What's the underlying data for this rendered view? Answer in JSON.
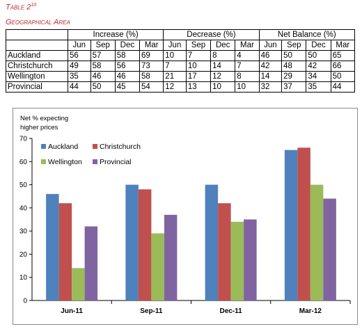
{
  "table": {
    "title_main": "Table 2",
    "title_sup": "10",
    "section": "Geographical Area",
    "groups": [
      "Increase (%)",
      "Decrease (%)",
      "Net Balance (%)"
    ],
    "months": [
      "Jun",
      "Sep",
      "Dec",
      "Mar"
    ],
    "rows": [
      {
        "label": "Auckland",
        "values": [
          "56",
          "57",
          "58",
          "69",
          "10",
          "7",
          "8",
          "4",
          "46",
          "50",
          "50",
          "65"
        ]
      },
      {
        "label": "Christchurch",
        "values": [
          "49",
          "58",
          "56",
          "73",
          "7",
          "10",
          "14",
          "7",
          "42",
          "48",
          "42",
          "66"
        ]
      },
      {
        "label": "Wellington",
        "values": [
          "35",
          "46",
          "46",
          "58",
          "21",
          "17",
          "12",
          "8",
          "14",
          "29",
          "34",
          "50"
        ]
      },
      {
        "label": "Provincial",
        "values": [
          "44",
          "50",
          "45",
          "54",
          "12",
          "13",
          "10",
          "10",
          "32",
          "37",
          "35",
          "44"
        ]
      }
    ]
  },
  "chart_data": {
    "type": "bar",
    "ylabel_lines": [
      "Net % expecting",
      "higher prices"
    ],
    "categories": [
      "Jun-11",
      "Sep-11",
      "Dec-11",
      "Mar-12"
    ],
    "ylim": [
      0,
      70
    ],
    "yticks": [
      0,
      10,
      20,
      30,
      40,
      50,
      60,
      70
    ],
    "grid": false,
    "legend_placement": "top-left",
    "series": [
      {
        "name": "Auckland",
        "color": "#4f81bd",
        "values": [
          46,
          50,
          50,
          65
        ]
      },
      {
        "name": "Christchurch",
        "color": "#c0504d",
        "values": [
          42,
          48,
          42,
          66
        ]
      },
      {
        "name": "Wellington",
        "color": "#9bbb59",
        "values": [
          14,
          29,
          34,
          50
        ]
      },
      {
        "name": "Provincial",
        "color": "#8064a2",
        "values": [
          32,
          37,
          35,
          44
        ]
      }
    ]
  }
}
